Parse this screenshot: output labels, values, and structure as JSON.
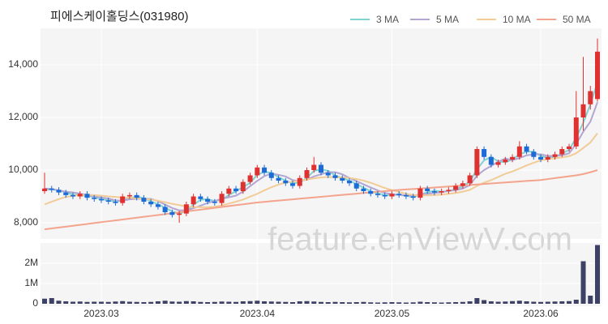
{
  "chart_data": {
    "type": "candlestick",
    "title": "피에스케이홀딩스(031980)",
    "watermark": "feature.enViewV.com",
    "categories": [
      null,
      null,
      null,
      null,
      null,
      null,
      null,
      null,
      "2023.03",
      null,
      null,
      null,
      null,
      null,
      null,
      null,
      null,
      null,
      null,
      null,
      null,
      null,
      null,
      null,
      null,
      null,
      null,
      null,
      null,
      null,
      "2023.04",
      null,
      null,
      null,
      null,
      null,
      null,
      null,
      null,
      null,
      null,
      null,
      null,
      null,
      null,
      null,
      null,
      null,
      null,
      "2023.05",
      null,
      null,
      null,
      null,
      null,
      null,
      null,
      null,
      null,
      null,
      null,
      null,
      null,
      null,
      null,
      null,
      null,
      null,
      null,
      null,
      "2023.06",
      null,
      null,
      null,
      null,
      null,
      null,
      null,
      null
    ],
    "open": [
      9200,
      9300,
      9250,
      9150,
      9050,
      9000,
      9100,
      8950,
      8900,
      8850,
      8800,
      8750,
      9000,
      9050,
      8950,
      8800,
      8700,
      8600,
      8400,
      8300,
      8350,
      8700,
      9000,
      8900,
      8800,
      8750,
      9100,
      9300,
      9200,
      9550,
      9800,
      10100,
      9900,
      9700,
      9600,
      9500,
      9400,
      9700,
      10000,
      10200,
      9900,
      9800,
      9700,
      9600,
      9500,
      9300,
      9200,
      9100,
      9050,
      9000,
      9100,
      9050,
      9000,
      8950,
      9300,
      9200,
      9150,
      9200,
      9250,
      9400,
      9500,
      9800,
      10800,
      10500,
      10200,
      10300,
      10400,
      10500,
      10900,
      10700,
      10500,
      10400,
      10500,
      10600,
      10800,
      10900,
      12000,
      12500,
      12700
    ],
    "high": [
      9900,
      9400,
      9350,
      9250,
      9150,
      9200,
      9200,
      9050,
      9000,
      8950,
      8900,
      9100,
      9150,
      9150,
      9050,
      8900,
      8800,
      8700,
      8500,
      8450,
      8800,
      9100,
      9100,
      9000,
      8900,
      9200,
      9400,
      9400,
      9650,
      9900,
      10200,
      10200,
      10000,
      9800,
      9700,
      9600,
      9800,
      10100,
      10500,
      10300,
      10000,
      9900,
      9800,
      9700,
      9600,
      9400,
      9300,
      9200,
      9150,
      9200,
      9200,
      9150,
      9100,
      9400,
      9400,
      9300,
      9300,
      9350,
      9500,
      9600,
      9900,
      10900,
      10900,
      10600,
      10400,
      10500,
      10600,
      11100,
      11000,
      10800,
      10600,
      10600,
      10700,
      10900,
      11000,
      13000,
      14300,
      13200,
      15000
    ],
    "low": [
      9100,
      9150,
      9050,
      8950,
      8900,
      8900,
      8850,
      8800,
      8750,
      8700,
      8650,
      8650,
      8900,
      8850,
      8700,
      8600,
      8500,
      8300,
      8200,
      8000,
      8250,
      8600,
      8800,
      8700,
      8650,
      8650,
      9000,
      9100,
      9100,
      9450,
      9700,
      9800,
      9600,
      9500,
      9400,
      9300,
      9300,
      9600,
      9900,
      9800,
      9700,
      9600,
      9500,
      9400,
      9200,
      9100,
      9000,
      8950,
      8900,
      8900,
      8950,
      8900,
      8850,
      8850,
      9100,
      9050,
      9050,
      9100,
      9150,
      9300,
      9400,
      9700,
      10400,
      10100,
      10100,
      10200,
      10300,
      10400,
      10600,
      10400,
      10300,
      10300,
      10400,
      10500,
      10700,
      10800,
      11500,
      12300,
      12600
    ],
    "close": [
      9300,
      9250,
      9150,
      9050,
      9000,
      9100,
      8950,
      8900,
      8850,
      8800,
      8750,
      9000,
      9050,
      8950,
      8800,
      8700,
      8600,
      8400,
      8300,
      8350,
      8700,
      9000,
      8900,
      8800,
      8750,
      9100,
      9300,
      9200,
      9550,
      9800,
      10100,
      9900,
      9700,
      9600,
      9500,
      9400,
      9700,
      10000,
      10200,
      9900,
      9800,
      9700,
      9600,
      9500,
      9300,
      9200,
      9100,
      9050,
      9000,
      9100,
      9050,
      9000,
      8950,
      9300,
      9200,
      9150,
      9200,
      9250,
      9400,
      9500,
      9800,
      10800,
      10500,
      10200,
      10300,
      10400,
      10500,
      10900,
      10700,
      10500,
      10400,
      10500,
      10600,
      10800,
      10900,
      12000,
      12500,
      13000,
      14500
    ],
    "up_color": "#e03131",
    "down_color": "#1c6bd6",
    "series": [
      {
        "name": "3 MA",
        "color": "#7fd3d3",
        "values": [
          9250,
          9270,
          9230,
          9150,
          9070,
          9050,
          9020,
          8980,
          8900,
          8850,
          8800,
          8850,
          8930,
          9000,
          8930,
          8820,
          8700,
          8570,
          8430,
          8350,
          8450,
          8680,
          8870,
          8900,
          8820,
          8880,
          9050,
          9200,
          9350,
          9520,
          9820,
          9930,
          9900,
          9730,
          9600,
          9500,
          9530,
          9700,
          9970,
          10030,
          9970,
          9800,
          9700,
          9600,
          9470,
          9330,
          9200,
          9120,
          9050,
          9050,
          9070,
          9030,
          8970,
          9080,
          9150,
          9220,
          9180,
          9200,
          9280,
          9380,
          9570,
          10030,
          10370,
          10500,
          10330,
          10300,
          10400,
          10600,
          10700,
          10700,
          10530,
          10470,
          10500,
          10630,
          10770,
          11230,
          11800,
          12500,
          13330
        ]
      },
      {
        "name": "5 MA",
        "color": "#b3a6d3",
        "values": [
          9300,
          9280,
          9230,
          9180,
          9150,
          9110,
          9050,
          9000,
          8960,
          8920,
          8850,
          8840,
          8890,
          8910,
          8910,
          8910,
          8820,
          8690,
          8560,
          8470,
          8470,
          8550,
          8650,
          8750,
          8830,
          8910,
          8970,
          9030,
          9180,
          9390,
          9590,
          9770,
          9870,
          9820,
          9760,
          9620,
          9580,
          9640,
          9760,
          9840,
          9920,
          9920,
          9840,
          9700,
          9580,
          9460,
          9340,
          9230,
          9130,
          9090,
          9060,
          9040,
          9030,
          9080,
          9100,
          9130,
          9160,
          9210,
          9240,
          9300,
          9430,
          9790,
          10000,
          10160,
          10320,
          10440,
          10380,
          10460,
          10560,
          10600,
          10600,
          10540,
          10540,
          10560,
          10640,
          11000,
          11460,
          11840,
          12580
        ]
      },
      {
        "name": "10 MA",
        "color": "#f2cc96",
        "values": [
          8700,
          8800,
          8900,
          8980,
          9020,
          9050,
          9060,
          9050,
          9030,
          9000,
          8980,
          8960,
          8950,
          8930,
          8900,
          8880,
          8840,
          8780,
          8720,
          8670,
          8620,
          8600,
          8590,
          8590,
          8610,
          8660,
          8730,
          8800,
          8880,
          8990,
          9100,
          9230,
          9350,
          9450,
          9530,
          9560,
          9600,
          9640,
          9690,
          9720,
          9740,
          9730,
          9720,
          9700,
          9660,
          9600,
          9520,
          9420,
          9320,
          9240,
          9170,
          9100,
          9060,
          9040,
          9040,
          9050,
          9070,
          9100,
          9130,
          9180,
          9250,
          9400,
          9520,
          9620,
          9740,
          9860,
          9950,
          10060,
          10180,
          10280,
          10370,
          10420,
          10450,
          10480,
          10530,
          10640,
          10840,
          11050,
          11400
        ]
      },
      {
        "name": "50 MA",
        "color": "#f4a38c",
        "values": [
          7750,
          7784,
          7818,
          7852,
          7886,
          7920,
          7954,
          7988,
          8022,
          8056,
          8090,
          8124,
          8158,
          8192,
          8226,
          8260,
          8294,
          8328,
          8362,
          8396,
          8430,
          8464,
          8498,
          8532,
          8566,
          8600,
          8634,
          8668,
          8702,
          8736,
          8770,
          8794,
          8818,
          8842,
          8866,
          8890,
          8914,
          8938,
          8962,
          8986,
          9010,
          9034,
          9058,
          9082,
          9106,
          9130,
          9154,
          9178,
          9202,
          9226,
          9245,
          9264,
          9283,
          9302,
          9321,
          9340,
          9359,
          9378,
          9397,
          9416,
          9435,
          9454,
          9473,
          9492,
          9511,
          9530,
          9549,
          9568,
          9587,
          9606,
          9625,
          9660,
          9695,
          9730,
          9765,
          9800,
          9850,
          9920,
          10000
        ]
      }
    ],
    "ylim": [
      7385,
      15385
    ],
    "yticks": [
      {
        "value": 8000,
        "label": "8,000"
      },
      {
        "value": 10000,
        "label": "10,000"
      },
      {
        "value": 12000,
        "label": "12,000"
      },
      {
        "value": 14000,
        "label": "14,000"
      }
    ],
    "grid": true,
    "volume": {
      "color": "#3d4166",
      "values": [
        250000,
        280000,
        150000,
        120000,
        100000,
        110000,
        90000,
        100000,
        100000,
        90000,
        110000,
        130000,
        100000,
        90000,
        80000,
        90000,
        120000,
        150000,
        110000,
        100000,
        130000,
        120000,
        90000,
        80000,
        90000,
        110000,
        100000,
        90000,
        120000,
        130000,
        150000,
        120000,
        110000,
        100000,
        90000,
        80000,
        120000,
        130000,
        110000,
        90000,
        80000,
        90000,
        80000,
        70000,
        80000,
        90000,
        70000,
        60000,
        70000,
        80000,
        70000,
        60000,
        70000,
        100000,
        80000,
        70000,
        60000,
        70000,
        80000,
        90000,
        120000,
        280000,
        180000,
        120000,
        100000,
        110000,
        130000,
        150000,
        120000,
        100000,
        90000,
        100000,
        110000,
        120000,
        130000,
        200000,
        2100000,
        400000,
        2900000
      ],
      "ylim": [
        0,
        3000000
      ],
      "yticks": [
        0,
        {
          "value": 1000000,
          "label": "1M"
        },
        {
          "value": 2000000,
          "label": "2M"
        }
      ]
    }
  }
}
